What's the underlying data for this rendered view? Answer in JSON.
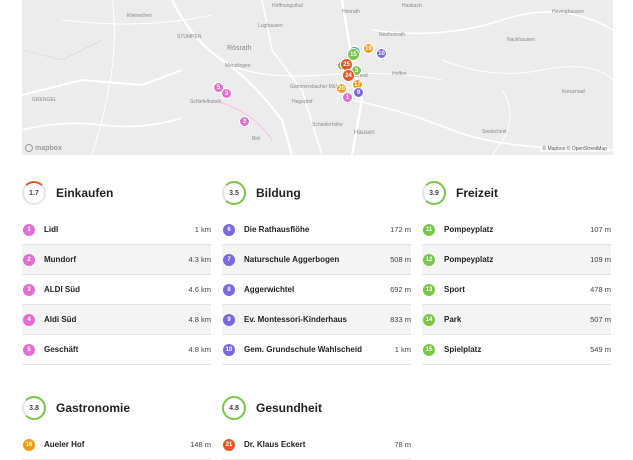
{
  "map": {
    "places": [
      {
        "name": "Kleinechen"
      },
      {
        "name": "STUMPEN"
      },
      {
        "name": "Rösrath"
      },
      {
        "name": "Hoffnungsthal"
      },
      {
        "name": "Lughausen"
      },
      {
        "name": "Menzlingen"
      },
      {
        "name": "Gammersbacher Mühle"
      },
      {
        "name": "Hagerhof"
      },
      {
        "name": "Schiefelbusch"
      },
      {
        "name": "Scheiderhöhe"
      },
      {
        "name": "Honrath"
      },
      {
        "name": "Hoffen"
      },
      {
        "name": "Neuhonrath"
      },
      {
        "name": "Hausen"
      },
      {
        "name": "Wahlscheid"
      },
      {
        "name": "Hevinghausen"
      },
      {
        "name": "Nackhausen"
      },
      {
        "name": "Seelscheid"
      },
      {
        "name": "Kreuznaaf"
      },
      {
        "name": "GRENGEL"
      },
      {
        "name": "Birk"
      },
      {
        "name": "Hasbach"
      }
    ],
    "logo": "mapbox",
    "attribution": "© Mapbox © OpenStreetMap"
  },
  "colors": {
    "einkaufen": "#e06fd0",
    "bildung": "#7b67e0",
    "freizeit": "#7ac74a",
    "gastronomie": "#f29a1a",
    "gesundheit": "#e5572b"
  },
  "categories": [
    {
      "title": "Einkaufen",
      "score": "1.7",
      "score_fraction": 0.34,
      "items": [
        {
          "num": "1",
          "name": "Lidl",
          "dist": "1 km"
        },
        {
          "num": "2",
          "name": "Mundorf",
          "dist": "4.3 km"
        },
        {
          "num": "3",
          "name": "ALDI Süd",
          "dist": "4.6 km"
        },
        {
          "num": "4",
          "name": "Aldi Süd",
          "dist": "4.8 km"
        },
        {
          "num": "5",
          "name": "Geschäft",
          "dist": "4.8 km"
        }
      ]
    },
    {
      "title": "Bildung",
      "score": "3.5",
      "score_fraction": 0.7,
      "items": [
        {
          "num": "6",
          "name": "Die Rathausflöhe",
          "dist": "172 m"
        },
        {
          "num": "7",
          "name": "Naturschule Aggerbogen",
          "dist": "508 m"
        },
        {
          "num": "8",
          "name": "Aggerwichtel",
          "dist": "692 m"
        },
        {
          "num": "9",
          "name": "Ev. Montessori-Kinderhaus",
          "dist": "833 m"
        },
        {
          "num": "10",
          "name": "Gem. Grundschule Wahlscheid",
          "dist": "1 km"
        }
      ]
    },
    {
      "title": "Freizeit",
      "score": "3.9",
      "score_fraction": 0.78,
      "items": [
        {
          "num": "11",
          "name": "Pompeyplatz",
          "dist": "107 m"
        },
        {
          "num": "12",
          "name": "Pompeyplatz",
          "dist": "109 m"
        },
        {
          "num": "13",
          "name": "Sport",
          "dist": "478 m"
        },
        {
          "num": "14",
          "name": "Park",
          "dist": "507 m"
        },
        {
          "num": "15",
          "name": "Spielplatz",
          "dist": "549 m"
        }
      ]
    },
    {
      "title": "Gastronomie",
      "score": "3.8",
      "score_fraction": 0.76,
      "items": [
        {
          "num": "16",
          "name": "Aueler Hof",
          "dist": "148 m"
        }
      ]
    },
    {
      "title": "Gesundheit",
      "score": "4.8",
      "score_fraction": 0.96,
      "items": [
        {
          "num": "21",
          "name": "Dr. Klaus Eckert",
          "dist": "78 m"
        }
      ]
    }
  ]
}
